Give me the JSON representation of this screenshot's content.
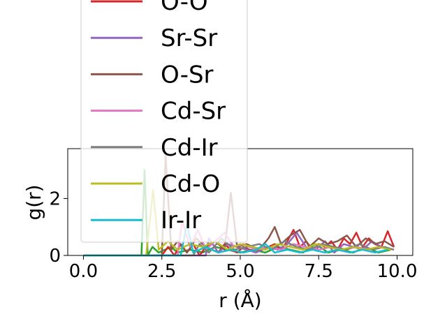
{
  "chart_data": {
    "type": "line",
    "title": "",
    "xlabel": "r (Å)",
    "ylabel": "g(r)",
    "xlim": [
      -0.5,
      10.5
    ],
    "ylim": [
      0,
      3.75
    ],
    "xticks": [
      0.0,
      2.5,
      5.0,
      7.5,
      10.0
    ],
    "xtick_labels": [
      "0.0",
      "2.5",
      "5.0",
      "7.5",
      "10.0"
    ],
    "yticks": [
      0,
      2
    ],
    "ytick_labels": [
      "0",
      "2"
    ],
    "grid": false,
    "legend_placement": "upper-left, overflowing above the axes",
    "series": [
      {
        "name": "O-O",
        "color": "#d62728",
        "x": [
          0,
          2.5,
          2.7,
          2.9,
          3.1,
          3.3,
          3.5,
          3.7,
          3.9,
          4.1,
          4.3,
          4.5,
          4.7,
          4.9,
          5.1,
          5.5,
          5.9,
          6.1,
          6.3,
          6.5,
          6.7,
          6.9,
          7.1,
          7.3,
          7.5,
          7.7,
          7.9,
          8.1,
          8.3,
          8.5,
          8.7,
          8.9,
          9.1,
          9.3,
          9.5,
          9.7,
          9.9
        ],
        "y": [
          0,
          0,
          0.3,
          0,
          0.4,
          0.1,
          0.4,
          0,
          0.3,
          0.2,
          0.1,
          0.4,
          0.2,
          0.1,
          0.3,
          0.1,
          0.3,
          0.4,
          0.2,
          0.5,
          0.9,
          0.3,
          0.5,
          0.2,
          0.4,
          0.3,
          0.5,
          0.2,
          0.6,
          0.4,
          0.8,
          0.3,
          0.6,
          0.4,
          0.3,
          0.85,
          0.3
        ]
      },
      {
        "name": "Sr-Sr",
        "color": "#9467bd",
        "x": [
          0,
          3.9,
          4.0,
          4.3,
          4.6,
          5.2,
          5.5,
          5.9,
          6.2,
          6.5,
          6.8,
          7.1,
          7.4,
          7.7,
          8.0,
          8.3,
          8.6,
          8.9,
          9.2,
          9.5,
          9.8
        ],
        "y": [
          0,
          0,
          0.6,
          0.1,
          0.4,
          0.2,
          0.1,
          0.3,
          0.2,
          0.4,
          0.8,
          0.3,
          0.2,
          0.5,
          0.1,
          0.4,
          0.3,
          0.2,
          0.5,
          0.3,
          0.2
        ]
      },
      {
        "name": "O-Sr",
        "color": "#8c564b",
        "x": [
          0,
          2.5,
          2.62,
          2.8,
          3.0,
          3.3,
          3.6,
          3.9,
          4.2,
          4.5,
          4.7,
          4.9,
          5.2,
          5.6,
          5.9,
          6.1,
          6.3,
          6.6,
          6.9,
          7.2,
          7.5,
          7.8,
          8.1,
          8.4,
          8.7,
          9.0,
          9.3,
          9.6,
          9.9
        ],
        "y": [
          0,
          0,
          3.5,
          0.2,
          0.5,
          0.1,
          0.6,
          0.3,
          0.5,
          0.2,
          2.2,
          0.3,
          0.4,
          0.2,
          0.6,
          1.0,
          0.4,
          0.7,
          0.9,
          0.3,
          0.6,
          0.4,
          0.5,
          0.7,
          0.3,
          0.6,
          0.4,
          0.5,
          0.3
        ]
      },
      {
        "name": "Cd-Sr",
        "color": "#e377c2",
        "x": [
          0,
          3.0,
          3.15,
          3.4,
          3.65,
          3.9,
          4.2,
          4.5,
          4.8,
          5.1,
          5.5,
          5.9,
          6.3,
          6.7,
          7.1,
          7.5,
          7.9,
          8.3,
          8.7,
          9.1,
          9.5,
          9.9
        ],
        "y": [
          0,
          0,
          1.2,
          0.3,
          0.9,
          0.2,
          0.5,
          0.8,
          0.3,
          0.4,
          0.2,
          0.3,
          0.2,
          0.4,
          0.3,
          0.2,
          0.3,
          0.2,
          0.3,
          0.2,
          0.3,
          0.2
        ]
      },
      {
        "name": "Cd-Ir",
        "color": "#7f7f7f",
        "x": [
          0,
          3.5,
          3.7,
          4.0,
          4.4,
          4.8,
          5.2,
          5.6,
          6.0,
          6.4,
          6.8,
          7.2,
          7.6,
          8.0,
          8.4,
          8.8,
          9.2,
          9.6,
          9.9
        ],
        "y": [
          0,
          0,
          0.4,
          0.1,
          0.6,
          0.2,
          0.3,
          0.4,
          0.2,
          0.5,
          0.3,
          0.2,
          0.4,
          0.3,
          0.2,
          0.4,
          0.2,
          0.3,
          0.2
        ]
      },
      {
        "name": "Cd-O",
        "color": "#bcbd22",
        "x": [
          0,
          2.0,
          2.22,
          2.4,
          2.7,
          3.0,
          3.4,
          3.8,
          4.2,
          4.6,
          5.0,
          5.4,
          5.8,
          6.2,
          6.6,
          7.0,
          7.4,
          7.8,
          8.2,
          8.6,
          9.0,
          9.4,
          9.8
        ],
        "y": [
          0,
          0,
          2.3,
          0.2,
          0.5,
          0.2,
          0.4,
          0.3,
          0.5,
          0.2,
          0.4,
          0.3,
          0.2,
          0.4,
          0.3,
          0.2,
          0.4,
          0.3,
          0.2,
          0.3,
          0.2,
          0.3,
          0.2
        ]
      },
      {
        "name": "Ir-Ir",
        "color": "#17becf",
        "x": [
          0,
          3.1,
          3.3,
          3.5,
          3.9,
          4.3,
          4.7,
          5.1,
          5.5,
          5.8,
          6.1,
          6.5,
          6.9,
          7.3,
          7.7,
          8.1,
          8.5,
          8.9,
          9.3,
          9.7
        ],
        "y": [
          0,
          0,
          1.1,
          0.1,
          0.3,
          0.1,
          0.2,
          0.1,
          0.2,
          0.4,
          0.1,
          0.2,
          0.1,
          0.2,
          0.1,
          0.2,
          0.1,
          0.2,
          0.1,
          0.2
        ]
      },
      {
        "name": "",
        "color": "#2ca02c",
        "x": [
          0,
          1.85,
          1.95,
          2.05,
          2.2,
          2.4,
          2.6,
          2.8,
          3.0,
          3.4,
          3.8,
          4.2,
          4.6,
          5.0,
          5.4,
          5.8,
          6.2,
          6.6,
          7.0,
          7.4,
          7.8,
          8.2,
          8.6,
          9.0,
          9.4,
          9.8
        ],
        "y": [
          0,
          0,
          3.0,
          0,
          0.3,
          0.1,
          0.2,
          0.3,
          0.1,
          0.2,
          0.1,
          0.3,
          0.2,
          0.1,
          0.2,
          0.1,
          0.3,
          0.2,
          0.1,
          0.4,
          0.1,
          0.2,
          0.1,
          0.3,
          0.1,
          0.2
        ]
      }
    ],
    "legend": [
      {
        "label": "O-O",
        "color": "#d62728"
      },
      {
        "label": "Sr-Sr",
        "color": "#9467bd"
      },
      {
        "label": "O-Sr",
        "color": "#8c564b"
      },
      {
        "label": "Cd-Sr",
        "color": "#e377c2"
      },
      {
        "label": "Cd-Ir",
        "color": "#7f7f7f"
      },
      {
        "label": "Cd-O",
        "color": "#bcbd22"
      },
      {
        "label": "Ir-Ir",
        "color": "#17becf"
      }
    ]
  }
}
